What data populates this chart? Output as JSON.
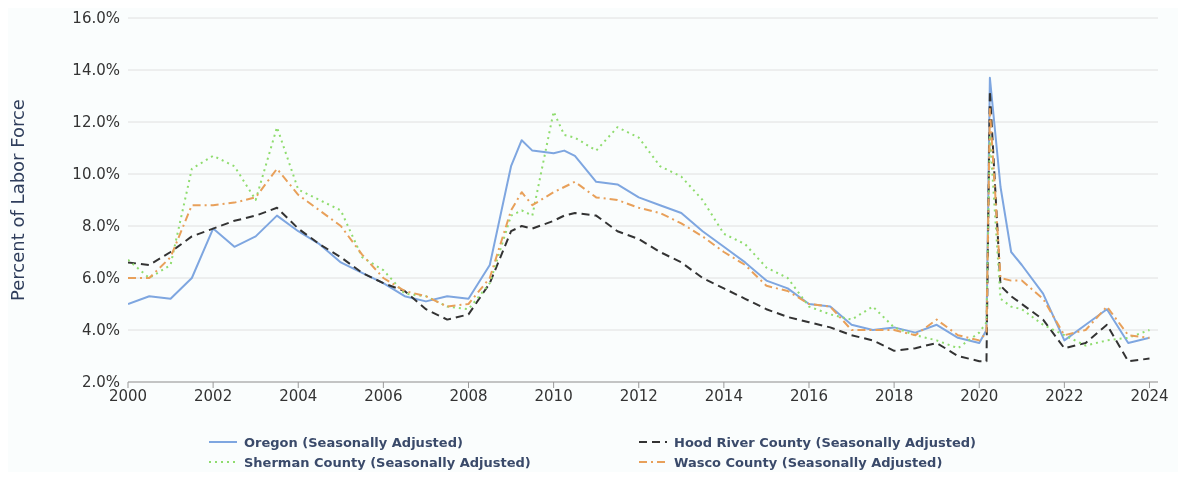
{
  "chart_data": {
    "type": "line",
    "ylabel": "Percent of Labor Force",
    "x": [
      2000,
      2000.5,
      2001,
      2001.5,
      2002,
      2002.5,
      2003,
      2003.5,
      2004,
      2004.5,
      2005,
      2005.5,
      2006,
      2006.5,
      2007,
      2007.5,
      2008,
      2008.5,
      2009,
      2009.25,
      2009.5,
      2010,
      2010.25,
      2010.5,
      2011,
      2011.5,
      2012,
      2012.5,
      2013,
      2013.5,
      2014,
      2014.5,
      2015,
      2015.5,
      2016,
      2016.5,
      2017,
      2017.5,
      2018,
      2018.5,
      2019,
      2019.5,
      2020,
      2020.17,
      2020.25,
      2020.5,
      2020.75,
      2021,
      2021.5,
      2022,
      2022.5,
      2023,
      2023.5,
      2024
    ],
    "series": [
      {
        "name": "Oregon (Seasonally Adjusted)",
        "color": "#7ea6e0",
        "line_style": "solid",
        "values": [
          5.0,
          5.3,
          5.2,
          6.0,
          7.9,
          7.2,
          7.6,
          8.4,
          7.8,
          7.3,
          6.6,
          6.2,
          5.8,
          5.3,
          5.1,
          5.3,
          5.2,
          6.5,
          10.3,
          11.3,
          10.9,
          10.8,
          10.9,
          10.7,
          9.7,
          9.6,
          9.1,
          8.8,
          8.5,
          7.8,
          7.2,
          6.6,
          5.9,
          5.6,
          5.0,
          4.9,
          4.2,
          4.0,
          4.1,
          3.9,
          4.2,
          3.7,
          3.5,
          4.0,
          13.7,
          9.5,
          7.0,
          6.5,
          5.4,
          3.6,
          4.2,
          4.8,
          3.5,
          3.7
        ]
      },
      {
        "name": "Hood River County (Seasonally Adjusted)",
        "color": "#333333",
        "line_style": "dashed",
        "values": [
          6.6,
          6.5,
          7.0,
          7.6,
          7.9,
          8.2,
          8.4,
          8.7,
          7.9,
          7.3,
          6.8,
          6.2,
          5.8,
          5.5,
          4.8,
          4.4,
          4.6,
          5.8,
          7.8,
          8.0,
          7.9,
          8.2,
          8.4,
          8.5,
          8.4,
          7.8,
          7.5,
          7.0,
          6.6,
          6.0,
          5.6,
          5.2,
          4.8,
          4.5,
          4.3,
          4.1,
          3.8,
          3.6,
          3.2,
          3.3,
          3.5,
          3.0,
          2.8,
          2.8,
          13.2,
          5.7,
          5.3,
          5.0,
          4.4,
          3.3,
          3.5,
          4.2,
          2.8,
          2.9
        ]
      },
      {
        "name": "Sherman County (Seasonally Adjusted)",
        "color": "#8fdc6e",
        "line_style": "dotted",
        "values": [
          6.7,
          6.0,
          6.5,
          10.2,
          10.7,
          10.3,
          9.0,
          11.8,
          9.4,
          9.0,
          8.6,
          6.8,
          6.3,
          5.4,
          5.3,
          4.9,
          4.8,
          5.8,
          8.4,
          8.6,
          8.4,
          12.4,
          11.5,
          11.4,
          10.9,
          11.8,
          11.4,
          10.3,
          9.9,
          9.0,
          7.7,
          7.3,
          6.4,
          6.0,
          4.9,
          4.6,
          4.4,
          4.9,
          4.1,
          3.8,
          3.6,
          3.3,
          3.9,
          4.3,
          11.5,
          5.2,
          4.9,
          4.8,
          4.2,
          3.8,
          3.4,
          3.6,
          3.7,
          4.0
        ]
      },
      {
        "name": "Wasco County (Seasonally Adjusted)",
        "color": "#e8a05a",
        "line_style": "dashdot",
        "values": [
          6.0,
          6.0,
          6.8,
          8.8,
          8.8,
          8.9,
          9.1,
          10.2,
          9.2,
          8.6,
          8.0,
          6.9,
          6.0,
          5.5,
          5.3,
          4.9,
          5.0,
          6.0,
          8.6,
          9.3,
          8.8,
          9.3,
          9.5,
          9.7,
          9.1,
          9.0,
          8.7,
          8.5,
          8.1,
          7.6,
          7.0,
          6.5,
          5.7,
          5.5,
          5.0,
          4.9,
          4.0,
          4.0,
          4.0,
          3.8,
          4.4,
          3.8,
          3.6,
          3.9,
          12.5,
          6.0,
          5.9,
          5.9,
          5.2,
          3.8,
          4.0,
          4.9,
          3.8,
          3.7
        ]
      }
    ],
    "xlim": [
      2000,
      2024.2
    ],
    "xticks": [
      2000,
      2002,
      2004,
      2006,
      2008,
      2010,
      2012,
      2014,
      2016,
      2018,
      2020,
      2022,
      2024
    ],
    "ylim": [
      2,
      16
    ],
    "yticks": [
      {
        "value": 2,
        "label": "2.0%"
      },
      {
        "value": 4,
        "label": "4.0%"
      },
      {
        "value": 6,
        "label": "6.0%"
      },
      {
        "value": 8,
        "label": "8.0%"
      },
      {
        "value": 10,
        "label": "10.0%"
      },
      {
        "value": 12,
        "label": "12.0%"
      },
      {
        "value": 14,
        "label": "14.0%"
      },
      {
        "value": 16,
        "label": "16.0%"
      }
    ],
    "grid": "y",
    "legend": "bottom",
    "marker": "none"
  }
}
